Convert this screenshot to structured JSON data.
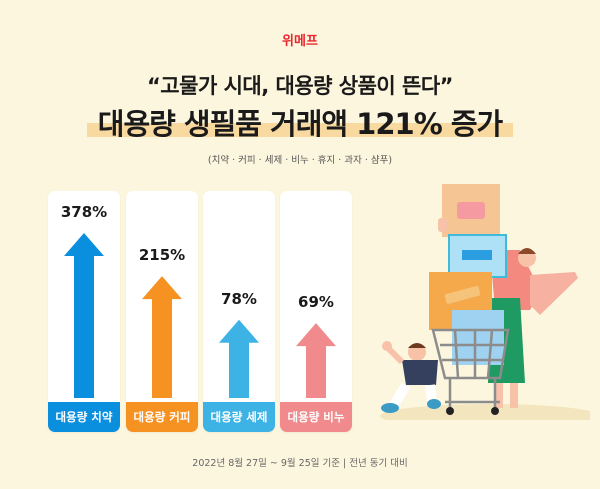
{
  "brand": "위메프",
  "headline_quote": "“고물가 시대, 대용량 상품이 뜬다”",
  "headline_title": "대용량 생필품 거래액 121% 증가",
  "subtitle": "(치약 · 커피 · 세제 · 비누 · 휴지 · 과자 · 샴푸)",
  "footer": "2022년 8월 27일 ~ 9월 25일 기준  |  전년 동기 대비",
  "chart_data": {
    "type": "bar",
    "categories": [
      "대용량 치약",
      "대용량 커피",
      "대용량 세제",
      "대용량 비누"
    ],
    "values": [
      378,
      215,
      78,
      69
    ],
    "value_labels": [
      "378%",
      "215%",
      "78%",
      "69%"
    ],
    "colors": [
      "#0a8fde",
      "#f59222",
      "#3db3e5",
      "#f08a8c"
    ],
    "unit": "%",
    "grid": false
  }
}
